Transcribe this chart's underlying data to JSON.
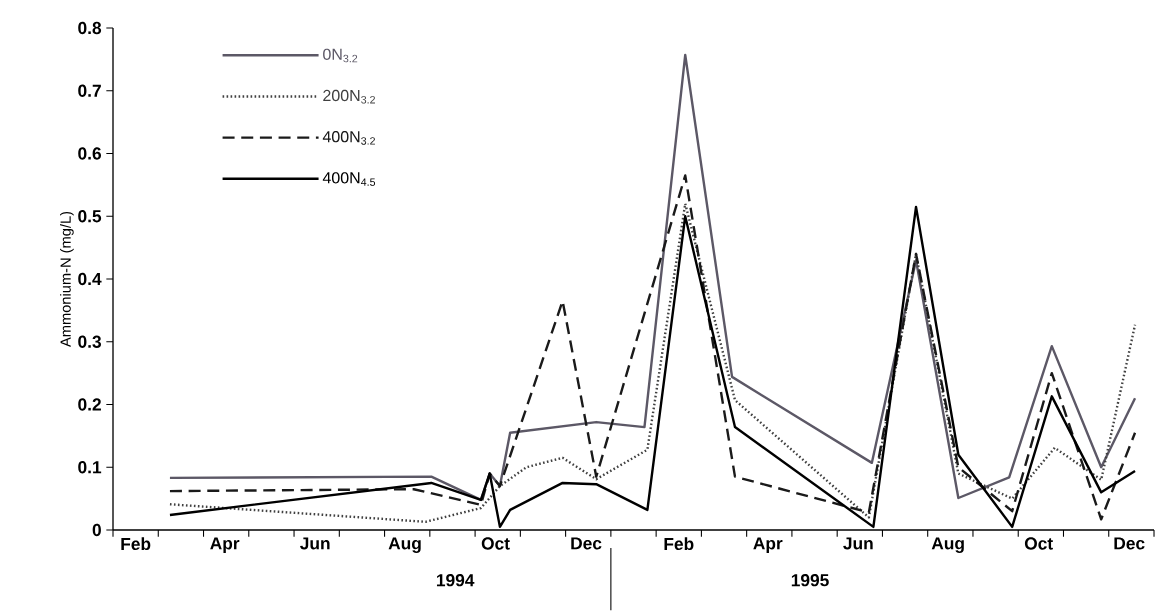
{
  "chart_data": {
    "type": "line",
    "ylabel": "Ammonium-N (mg/L)",
    "xlim": [
      "1994-02-01",
      "1996-01-01"
    ],
    "ylim": [
      0,
      0.8
    ],
    "xticks": [
      {
        "value": "1994-02-01",
        "label": null
      },
      {
        "value": "1994-02-15",
        "label": "Feb"
      },
      {
        "value": "1994-03-01",
        "label": null
      },
      {
        "value": "1994-04-01",
        "label": null
      },
      {
        "value": "1994-04-15",
        "label": "Apr"
      },
      {
        "value": "1994-05-01",
        "label": null
      },
      {
        "value": "1994-06-01",
        "label": null
      },
      {
        "value": "1994-06-15",
        "label": "Jun"
      },
      {
        "value": "1994-07-01",
        "label": null
      },
      {
        "value": "1994-08-01",
        "label": null
      },
      {
        "value": "1994-08-15",
        "label": "Aug"
      },
      {
        "value": "1994-09-01",
        "label": null
      },
      {
        "value": "1994-10-01",
        "label": null
      },
      {
        "value": "1994-10-15",
        "label": "Oct"
      },
      {
        "value": "1994-11-01",
        "label": null
      },
      {
        "value": "1994-12-01",
        "label": null
      },
      {
        "value": "1994-12-15",
        "label": "Dec"
      },
      {
        "value": "1995-01-01",
        "label": null
      },
      {
        "value": "1995-02-01",
        "label": null
      },
      {
        "value": "1995-02-15",
        "label": "Feb"
      },
      {
        "value": "1995-03-01",
        "label": null
      },
      {
        "value": "1995-04-01",
        "label": null
      },
      {
        "value": "1995-04-15",
        "label": "Apr"
      },
      {
        "value": "1995-05-01",
        "label": null
      },
      {
        "value": "1995-06-01",
        "label": null
      },
      {
        "value": "1995-06-15",
        "label": "Jun"
      },
      {
        "value": "1995-07-01",
        "label": null
      },
      {
        "value": "1995-08-01",
        "label": null
      },
      {
        "value": "1995-08-15",
        "label": "Aug"
      },
      {
        "value": "1995-09-01",
        "label": null
      },
      {
        "value": "1995-10-01",
        "label": null
      },
      {
        "value": "1995-10-15",
        "label": "Oct"
      },
      {
        "value": "1995-11-01",
        "label": null
      },
      {
        "value": "1995-12-01",
        "label": null
      },
      {
        "value": "1995-12-15",
        "label": "Dec"
      },
      {
        "value": "1996-01-01",
        "label": null
      }
    ],
    "yticks": [
      0,
      0.1,
      0.2,
      0.3,
      0.4,
      0.5,
      0.6,
      0.7,
      0.8
    ],
    "annotations": [
      "1994",
      "1995"
    ],
    "legend": "top left",
    "series": [
      {
        "name": "0N$_{3.2}$",
        "color": "#5c5866",
        "line_style": "solid",
        "x": [
          "1994-03-09",
          "1994-09-02",
          "1994-10-05",
          "1994-10-11",
          "1994-10-18",
          "1994-10-25",
          "1994-12-22",
          "1995-01-24",
          "1995-02-19",
          "1995-03-22",
          "1995-06-24",
          "1995-07-24",
          "1995-08-22",
          "1995-09-25",
          "1995-10-24",
          "1995-11-26",
          "1995-12-19"
        ],
        "values": [
          0.083,
          0.085,
          0.048,
          0.09,
          0.07,
          0.155,
          0.172,
          0.164,
          0.757,
          0.244,
          0.107,
          0.43,
          0.051,
          0.084,
          0.293,
          0.1,
          0.21
        ]
      },
      {
        "name": "200N$_{3.2}$",
        "color": "#404040",
        "line_style": "dotted",
        "x": [
          "1994-03-09",
          "1994-08-29",
          "1994-10-05",
          "1994-10-18",
          "1994-11-05",
          "1994-11-29",
          "1994-12-22",
          "1995-01-26",
          "1995-02-19",
          "1995-03-24",
          "1995-06-22",
          "1995-07-24",
          "1995-08-22",
          "1995-09-27",
          "1995-10-26",
          "1995-11-26",
          "1995-12-19"
        ],
        "values": [
          0.041,
          0.013,
          0.035,
          0.07,
          0.1,
          0.115,
          0.081,
          0.128,
          0.52,
          0.207,
          0.02,
          0.44,
          0.09,
          0.05,
          0.131,
          0.08,
          0.327
        ]
      },
      {
        "name": "400N$_{3.2}$",
        "color": "#1a1a1a",
        "line_style": "dashed",
        "x": [
          "1994-03-09",
          "1994-08-21",
          "1994-10-05",
          "1994-10-11",
          "1994-10-18",
          "1994-11-29",
          "1994-12-22",
          "1995-02-19",
          "1995-03-24",
          "1995-06-22",
          "1995-07-24",
          "1995-08-22",
          "1995-09-27",
          "1995-10-24",
          "1995-11-26",
          "1995-12-19"
        ],
        "values": [
          0.062,
          0.065,
          0.04,
          0.09,
          0.07,
          0.365,
          0.085,
          0.565,
          0.085,
          0.028,
          0.44,
          0.1,
          0.03,
          0.25,
          0.017,
          0.155
        ]
      },
      {
        "name": "400N$_{4.5}$",
        "color": "#000000",
        "line_style": "solid",
        "x": [
          "1994-03-09",
          "1994-09-02",
          "1994-10-05",
          "1994-10-11",
          "1994-10-18",
          "1994-10-25",
          "1994-11-29",
          "1994-12-22",
          "1995-01-26",
          "1995-02-19",
          "1995-03-24",
          "1995-06-25",
          "1995-07-24",
          "1995-08-22",
          "1995-09-27",
          "1995-10-24",
          "1995-11-26",
          "1995-12-19"
        ],
        "values": [
          0.024,
          0.075,
          0.048,
          0.09,
          0.005,
          0.032,
          0.075,
          0.073,
          0.032,
          0.5,
          0.164,
          0.005,
          0.515,
          0.12,
          0.005,
          0.213,
          0.06,
          0.094
        ]
      }
    ]
  }
}
